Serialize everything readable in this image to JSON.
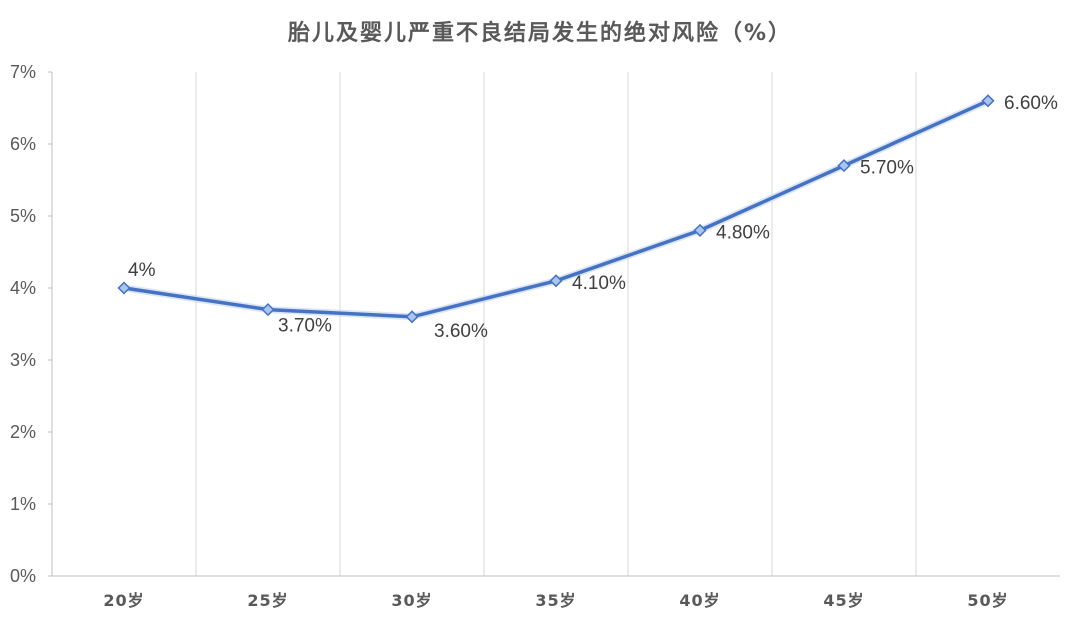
{
  "chart_data": {
    "type": "line",
    "title": "胎儿及婴儿严重不良结局发生的绝对风险（%）",
    "categories": [
      "20岁",
      "25岁",
      "30岁",
      "35岁",
      "40岁",
      "45岁",
      "50岁"
    ],
    "series": [
      {
        "values": [
          4.0,
          3.7,
          3.6,
          4.1,
          4.8,
          5.7,
          6.6
        ],
        "data_labels": [
          "4%",
          "3.70%",
          "3.60%",
          "4.10%",
          "4.80%",
          "5.70%",
          "6.60%"
        ],
        "color": "#4472C4"
      }
    ],
    "y_ticks": [
      "0%",
      "1%",
      "2%",
      "3%",
      "4%",
      "5%",
      "6%",
      "7%"
    ],
    "ylim": [
      0,
      7
    ],
    "xlabel": "",
    "ylabel": "",
    "grid": "vertical",
    "legend": "none"
  }
}
